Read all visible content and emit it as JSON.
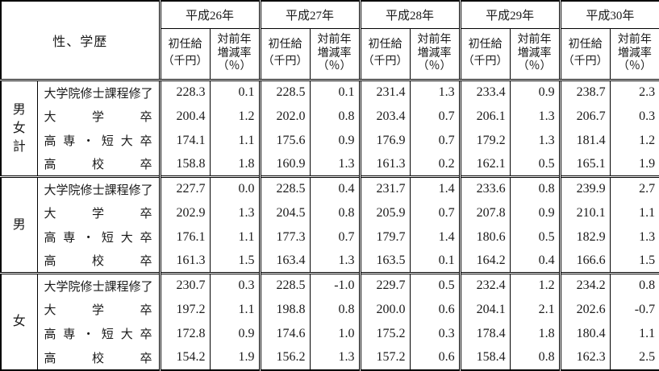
{
  "table": {
    "corner_label": "性、学歴",
    "years": [
      "平成26年",
      "平成27年",
      "平成28年",
      "平成29年",
      "平成30年"
    ],
    "sub_headers": {
      "salary_lines": [
        "初任給",
        "（千円）"
      ],
      "rate_lines": [
        "対前年",
        "増減率",
        "（％）"
      ]
    },
    "groups": [
      {
        "label": "男女計",
        "rows": [
          {
            "education": "大学院修士課程修了",
            "values": [
              "228.3",
              "0.1",
              "228.5",
              "0.1",
              "231.4",
              "1.3",
              "233.4",
              "0.9",
              "238.7",
              "2.3"
            ]
          },
          {
            "education": "大学卒",
            "values": [
              "200.4",
              "1.2",
              "202.0",
              "0.8",
              "203.4",
              "0.7",
              "206.1",
              "1.3",
              "206.7",
              "0.3"
            ]
          },
          {
            "education": "高専・短大卒",
            "values": [
              "174.1",
              "1.1",
              "175.6",
              "0.9",
              "176.9",
              "0.7",
              "179.2",
              "1.3",
              "181.4",
              "1.2"
            ]
          },
          {
            "education": "高校卒",
            "values": [
              "158.8",
              "1.8",
              "160.9",
              "1.3",
              "161.3",
              "0.2",
              "162.1",
              "0.5",
              "165.1",
              "1.9"
            ]
          }
        ]
      },
      {
        "label": "男",
        "rows": [
          {
            "education": "大学院修士課程修了",
            "values": [
              "227.7",
              "0.0",
              "228.5",
              "0.4",
              "231.7",
              "1.4",
              "233.6",
              "0.8",
              "239.9",
              "2.7"
            ]
          },
          {
            "education": "大学卒",
            "values": [
              "202.9",
              "1.3",
              "204.5",
              "0.8",
              "205.9",
              "0.7",
              "207.8",
              "0.9",
              "210.1",
              "1.1"
            ]
          },
          {
            "education": "高専・短大卒",
            "values": [
              "176.1",
              "1.1",
              "177.3",
              "0.7",
              "179.7",
              "1.4",
              "180.6",
              "0.5",
              "182.9",
              "1.3"
            ]
          },
          {
            "education": "高校卒",
            "values": [
              "161.3",
              "1.5",
              "163.4",
              "1.3",
              "163.5",
              "0.1",
              "164.2",
              "0.4",
              "166.6",
              "1.5"
            ]
          }
        ]
      },
      {
        "label": "女",
        "rows": [
          {
            "education": "大学院修士課程修了",
            "values": [
              "230.7",
              "0.3",
              "228.5",
              "-1.0",
              "229.7",
              "0.5",
              "232.4",
              "1.2",
              "234.2",
              "0.8"
            ]
          },
          {
            "education": "大学卒",
            "values": [
              "197.2",
              "1.1",
              "198.8",
              "0.8",
              "200.0",
              "0.6",
              "204.1",
              "2.1",
              "202.6",
              "-0.7"
            ]
          },
          {
            "education": "高専・短大卒",
            "values": [
              "172.8",
              "0.9",
              "174.6",
              "1.0",
              "175.2",
              "0.3",
              "178.4",
              "1.8",
              "180.4",
              "1.1"
            ]
          },
          {
            "education": "高校卒",
            "values": [
              "154.2",
              "1.9",
              "156.2",
              "1.3",
              "157.2",
              "0.6",
              "158.4",
              "0.8",
              "162.3",
              "2.5"
            ]
          }
        ]
      }
    ],
    "colors": {
      "border": "#000000",
      "text": "#1a1a1a",
      "background": "#ffffff"
    }
  }
}
